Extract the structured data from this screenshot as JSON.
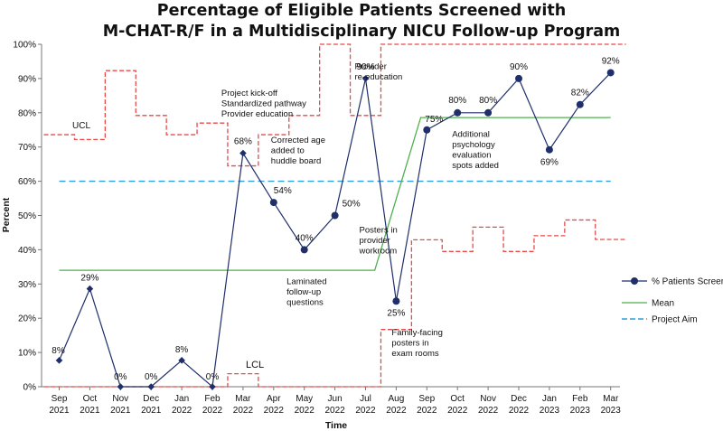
{
  "chart_data": {
    "type": "line",
    "title_lines": [
      "Percentage of Eligible Patients Screened with",
      "M-CHAT-R/F in a Multidisciplinary NICU Follow-up Program"
    ],
    "xlabel": "Time",
    "ylabel": "Percent",
    "ylim": [
      0,
      100
    ],
    "yticks": [
      "0%",
      "10%",
      "20%",
      "30%",
      "40%",
      "50%",
      "60%",
      "70%",
      "80%",
      "90%",
      "100%"
    ],
    "categories": [
      [
        "Sep",
        "2021"
      ],
      [
        "Oct",
        "2021"
      ],
      [
        "Nov",
        "2021"
      ],
      [
        "Dec",
        "2021"
      ],
      [
        "Jan",
        "2022"
      ],
      [
        "Feb",
        "2022"
      ],
      [
        "Mar",
        "2022"
      ],
      [
        "Apr",
        "2022"
      ],
      [
        "May",
        "2022"
      ],
      [
        "Jun",
        "2022"
      ],
      [
        "Jul",
        "2022"
      ],
      [
        "Aug",
        "2022"
      ],
      [
        "Sep",
        "2022"
      ],
      [
        "Oct",
        "2022"
      ],
      [
        "Nov",
        "2022"
      ],
      [
        "Dec",
        "2022"
      ],
      [
        "Jan",
        "2023"
      ],
      [
        "Feb",
        "2023"
      ],
      [
        "Mar",
        "2023"
      ]
    ],
    "series": [
      {
        "name": "% Patients Screened",
        "color": "#1f2f6b",
        "values": [
          7.7,
          28.6,
          0,
          0,
          7.7,
          0,
          68.2,
          53.8,
          40,
          50,
          90,
          25,
          75,
          80,
          80,
          90,
          69.2,
          82.4,
          91.7
        ],
        "point_labels": [
          "8%",
          "29%",
          "0%",
          "0%",
          "8%",
          "0%",
          "68%",
          "54%",
          "40%",
          "50%",
          "90%",
          "25%",
          "75%",
          "80%",
          "80%",
          "90%",
          "69%",
          "82%",
          "92%"
        ],
        "marker_types": [
          "diamond",
          "diamond",
          "diamond",
          "diamond",
          "diamond",
          "diamond",
          "diamond",
          "circle",
          "circle",
          "circle",
          "diamond",
          "circle",
          "circle",
          "circle",
          "circle",
          "circle",
          "circle",
          "circle",
          "circle"
        ]
      },
      {
        "name": "Mean",
        "color": "#4cb04c",
        "segments": [
          {
            "from": 0,
            "to": 10,
            "value": 34
          },
          {
            "from": 10.3,
            "to": 11.8,
            "ramp": [
              34,
              78.6
            ]
          },
          {
            "from": 11.8,
            "to": 18,
            "value": 78.6
          }
        ]
      },
      {
        "name": "Project Aim",
        "color": "#2e9ee0",
        "value": 60
      }
    ],
    "control_limits": {
      "color": "#e84a4a",
      "ucl": [
        73.6,
        72.2,
        92.3,
        79.2,
        73.6,
        77,
        64.5,
        73.6,
        79.2,
        100,
        79.2,
        100,
        100,
        100,
        100,
        100,
        100,
        100,
        100
      ],
      "lcl": [
        0,
        0,
        0,
        0,
        0,
        0,
        3.8,
        0,
        0,
        0,
        0,
        16.7,
        42.9,
        39.5,
        46.6,
        39.5,
        44.1,
        48.7,
        43
      ],
      "ucl_label": "UCL",
      "lcl_label": "LCL"
    },
    "annotations": [
      {
        "at": 6,
        "y": 85,
        "lines": [
          "Project kick-off",
          "Standardized pathway",
          "Provider education"
        ]
      },
      {
        "at": 7,
        "y": 71.3,
        "lines": [
          "Corrected age",
          "added to",
          "huddle board"
        ]
      },
      {
        "at": 10,
        "y": 45,
        "lines": [
          "Posters in",
          "provider",
          "workroom"
        ]
      },
      {
        "at": 10,
        "y": 92.7,
        "lines": [
          "Provider",
          "re-education"
        ]
      },
      {
        "at": 7.6,
        "y": 30,
        "lines": [
          "Laminated",
          "follow-up",
          "questions"
        ]
      },
      {
        "at": 11,
        "y": 15,
        "lines": [
          "Family-facing",
          "posters in",
          "exam rooms"
        ]
      },
      {
        "at": 13,
        "y": 73,
        "lines": [
          "Additional",
          "psychology",
          "evaluation",
          "spots added"
        ]
      }
    ],
    "legend": {
      "position": "right"
    }
  }
}
